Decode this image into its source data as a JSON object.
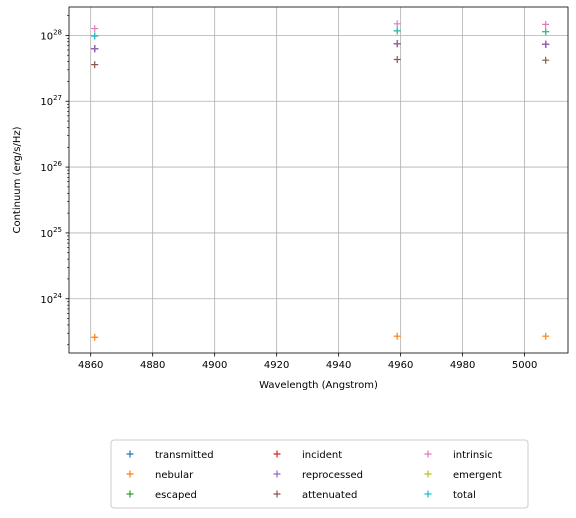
{
  "chart_data": {
    "type": "scatter",
    "marker": "+",
    "xlabel": "Wavelength (Angstrom)",
    "ylabel": "Continuum (erg/s/Hz)",
    "yscale": "log",
    "xlim": [
      4853,
      5014
    ],
    "ylim": [
      1.5e+23,
      2.7e+28
    ],
    "grid": true,
    "legend_placement": "below plot, 3 columns",
    "x_ticks": [
      4860,
      4880,
      4900,
      4920,
      4940,
      4960,
      4980,
      5000
    ],
    "y_ticks": [
      {
        "value": 1e+24,
        "label": "10^24"
      },
      {
        "value": 1e+25,
        "label": "10^25"
      },
      {
        "value": 1e+26,
        "label": "10^26"
      },
      {
        "value": 1e+27,
        "label": "10^27"
      },
      {
        "value": 1e+28,
        "label": "10^28"
      }
    ],
    "x": [
      4861.3,
      4958.9,
      5006.8
    ],
    "series": [
      {
        "name": "transmitted",
        "color": "#1f77b4",
        "values": [
          6.3e+27,
          7.5e+27,
          7.3e+27
        ]
      },
      {
        "name": "nebular",
        "color": "#ff7f0e",
        "values": [
          2.6e+23,
          2.7e+23,
          2.7e+23
        ]
      },
      {
        "name": "escaped",
        "color": "#2ca02c",
        "values": [
          6.3e+27,
          7.5e+27,
          7.3e+27
        ]
      },
      {
        "name": "incident",
        "color": "#d62728",
        "values": [
          6.3e+27,
          7.5e+27,
          7.3e+27
        ]
      },
      {
        "name": "reprocessed",
        "color": "#9467bd",
        "values": [
          6.3e+27,
          7.5e+27,
          7.3e+27
        ]
      },
      {
        "name": "attenuated",
        "color": "#8c564b",
        "values": [
          3.6e+27,
          4.3e+27,
          4.2e+27
        ]
      },
      {
        "name": "intrinsic",
        "color": "#e377c2",
        "values": [
          1.27e+28,
          1.5e+28,
          1.47e+28
        ]
      },
      {
        "name": "emergent",
        "color": "#bcbd22",
        "values": [
          9.8e+27,
          1.17e+28,
          1.14e+28
        ]
      },
      {
        "name": "total",
        "color": "#17becf",
        "values": [
          9.8e+27,
          1.17e+28,
          1.14e+28
        ]
      }
    ]
  }
}
